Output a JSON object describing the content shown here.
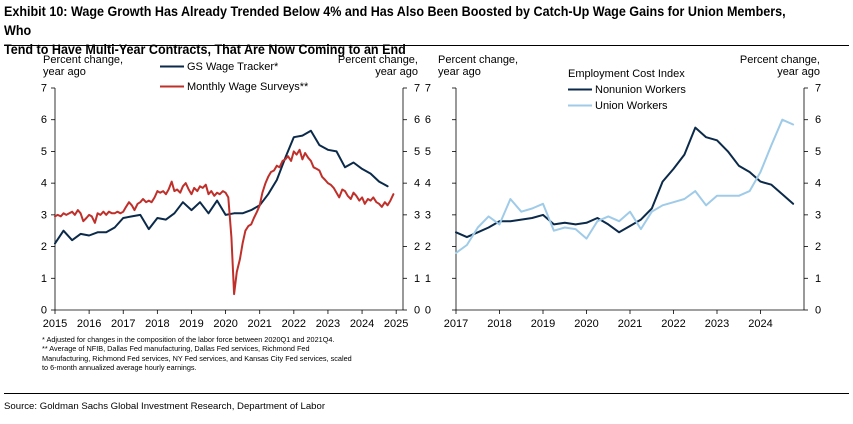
{
  "title_line1": "Exhibit 10: Wage Growth Has Already Trended Below 4% and Has Also Been Boosted by Catch-Up Wage Gains for Union Members, Who",
  "title_line2": "Tend to Have Multi-Year Contracts, That Are Now Coming to an End",
  "footnotes": [
    "* Adjusted for changes in the composition of the labor force between 2020Q1 and 2021Q4.",
    "** Average of NFIB, Dallas Fed manufacturing, Dallas Fed services, Richmond Fed",
    "Manufacturing, Richmond Fed services, NY Fed services, and Kansas City Fed services, scaled",
    "to 6-month annualized average hourly earnings."
  ],
  "source": "Source: Goldman Sachs Global Investment Research, Department of Labor",
  "colors": {
    "navy": "#0b2a4a",
    "red": "#c0302b",
    "light_blue": "#9fcbe8",
    "rule": "#000000",
    "axis": "#000000"
  },
  "chart_data": [
    {
      "type": "line",
      "yaxis_left_label": [
        "Percent change,",
        "year ago"
      ],
      "yaxis_right_label": [
        "Percent change,",
        "year ago"
      ],
      "ylim": [
        0,
        7
      ],
      "yticks": [
        0,
        1,
        2,
        3,
        4,
        5,
        6,
        7
      ],
      "xlim": [
        2015,
        2025.2
      ],
      "xticks": [
        2015,
        2016,
        2017,
        2018,
        2019,
        2020,
        2021,
        2022,
        2023,
        2024,
        2025
      ],
      "legend_position": "top",
      "series": [
        {
          "name": "GS Wage Tracker*",
          "color": "#0b2a4a",
          "x": [
            2015.0,
            2015.25,
            2015.5,
            2015.75,
            2016.0,
            2016.25,
            2016.5,
            2016.75,
            2017.0,
            2017.25,
            2017.5,
            2017.75,
            2018.0,
            2018.25,
            2018.5,
            2018.75,
            2019.0,
            2019.25,
            2019.5,
            2019.75,
            2020.0,
            2020.25,
            2020.5,
            2020.75,
            2021.0,
            2021.25,
            2021.5,
            2021.75,
            2022.0,
            2022.25,
            2022.5,
            2022.75,
            2023.0,
            2023.25,
            2023.5,
            2023.75,
            2024.0,
            2024.25,
            2024.5,
            2024.75
          ],
          "y": [
            2.1,
            2.5,
            2.2,
            2.4,
            2.35,
            2.45,
            2.45,
            2.6,
            2.9,
            2.95,
            3.0,
            2.55,
            2.9,
            2.85,
            3.05,
            3.4,
            3.15,
            3.4,
            3.05,
            3.45,
            3.0,
            3.05,
            3.05,
            3.15,
            3.3,
            3.65,
            4.1,
            4.8,
            5.45,
            5.5,
            5.65,
            5.2,
            5.05,
            5.0,
            4.5,
            4.65,
            4.45,
            4.3,
            4.05,
            3.9
          ]
        },
        {
          "name": "Monthly Wage Surveys**",
          "color": "#c0302b",
          "x": [
            2015.0,
            2015.08,
            2015.17,
            2015.25,
            2015.33,
            2015.42,
            2015.5,
            2015.58,
            2015.67,
            2015.75,
            2015.83,
            2015.92,
            2016.0,
            2016.08,
            2016.17,
            2016.25,
            2016.33,
            2016.42,
            2016.5,
            2016.58,
            2016.67,
            2016.75,
            2016.83,
            2016.92,
            2017.0,
            2017.08,
            2017.17,
            2017.25,
            2017.33,
            2017.42,
            2017.5,
            2017.58,
            2017.67,
            2017.75,
            2017.83,
            2017.92,
            2018.0,
            2018.08,
            2018.17,
            2018.25,
            2018.33,
            2018.42,
            2018.5,
            2018.58,
            2018.67,
            2018.75,
            2018.83,
            2018.92,
            2019.0,
            2019.08,
            2019.17,
            2019.25,
            2019.33,
            2019.42,
            2019.5,
            2019.58,
            2019.67,
            2019.75,
            2019.83,
            2019.92,
            2020.0,
            2020.08,
            2020.17,
            2020.25,
            2020.33,
            2020.42,
            2020.5,
            2020.58,
            2020.67,
            2020.75,
            2020.83,
            2020.92,
            2021.0,
            2021.08,
            2021.17,
            2021.25,
            2021.33,
            2021.42,
            2021.5,
            2021.58,
            2021.67,
            2021.75,
            2021.83,
            2021.92,
            2022.0,
            2022.08,
            2022.17,
            2022.25,
            2022.33,
            2022.42,
            2022.5,
            2022.58,
            2022.67,
            2022.75,
            2022.83,
            2022.92,
            2023.0,
            2023.08,
            2023.17,
            2023.25,
            2023.33,
            2023.42,
            2023.5,
            2023.58,
            2023.67,
            2023.75,
            2023.83,
            2023.92,
            2024.0,
            2024.08,
            2024.17,
            2024.25,
            2024.33,
            2024.42,
            2024.5,
            2024.58,
            2024.67,
            2024.75,
            2024.83,
            2024.92
          ],
          "y": [
            2.95,
            3.0,
            2.95,
            3.05,
            3.0,
            3.05,
            3.1,
            3.0,
            3.15,
            3.05,
            2.8,
            2.9,
            3.0,
            2.95,
            2.75,
            3.05,
            3.0,
            3.1,
            3.0,
            3.1,
            3.05,
            3.05,
            3.1,
            3.05,
            3.1,
            3.25,
            3.4,
            3.3,
            3.15,
            3.35,
            3.4,
            3.5,
            3.4,
            3.45,
            3.4,
            3.55,
            3.75,
            3.7,
            3.75,
            3.65,
            3.8,
            4.05,
            3.75,
            3.8,
            3.7,
            3.9,
            4.0,
            3.8,
            3.65,
            3.85,
            3.75,
            3.9,
            3.85,
            3.95,
            3.65,
            3.75,
            3.6,
            3.7,
            3.65,
            3.75,
            3.7,
            3.55,
            2.3,
            0.5,
            1.2,
            1.6,
            2.1,
            2.5,
            2.65,
            2.7,
            2.9,
            3.1,
            3.3,
            3.7,
            4.0,
            4.2,
            4.35,
            4.4,
            4.55,
            4.5,
            4.7,
            4.75,
            4.85,
            4.7,
            5.0,
            4.9,
            5.05,
            4.75,
            4.95,
            4.8,
            4.7,
            4.5,
            4.45,
            4.4,
            4.2,
            4.1,
            4.0,
            3.95,
            3.85,
            3.7,
            3.55,
            3.8,
            3.75,
            3.6,
            3.5,
            3.7,
            3.6,
            3.45,
            3.55,
            3.35,
            3.5,
            3.45,
            3.55,
            3.4,
            3.35,
            3.25,
            3.4,
            3.3,
            3.45,
            3.65
          ]
        }
      ]
    },
    {
      "type": "line",
      "yaxis_left_label": [
        "Percent change,",
        "year ago"
      ],
      "yaxis_right_label": [
        "Percent change,",
        "year ago"
      ],
      "legend_title": "Employment Cost Index",
      "legend_position": "top",
      "ylim": [
        0,
        7
      ],
      "yticks": [
        0,
        1,
        2,
        3,
        4,
        5,
        6,
        7
      ],
      "xlim": [
        2017,
        2025.0
      ],
      "xticks": [
        2017,
        2018,
        2019,
        2020,
        2021,
        2022,
        2023,
        2024
      ],
      "series": [
        {
          "name": "Nonunion Workers",
          "color": "#0b2a4a",
          "x": [
            2017.0,
            2017.25,
            2017.5,
            2017.75,
            2018.0,
            2018.25,
            2018.5,
            2018.75,
            2019.0,
            2019.25,
            2019.5,
            2019.75,
            2020.0,
            2020.25,
            2020.5,
            2020.75,
            2021.0,
            2021.25,
            2021.5,
            2021.75,
            2022.0,
            2022.25,
            2022.5,
            2022.75,
            2023.0,
            2023.25,
            2023.5,
            2023.75,
            2024.0,
            2024.25,
            2024.5,
            2024.75
          ],
          "y": [
            2.45,
            2.3,
            2.45,
            2.6,
            2.8,
            2.8,
            2.85,
            2.9,
            3.0,
            2.7,
            2.75,
            2.7,
            2.75,
            2.9,
            2.7,
            2.45,
            2.65,
            2.85,
            3.2,
            4.05,
            4.45,
            4.9,
            5.75,
            5.45,
            5.35,
            5.0,
            4.55,
            4.35,
            4.05,
            3.95,
            3.65,
            3.35
          ]
        },
        {
          "name": "Union Workers",
          "color": "#9fcbe8",
          "x": [
            2017.0,
            2017.25,
            2017.5,
            2017.75,
            2018.0,
            2018.25,
            2018.5,
            2018.75,
            2019.0,
            2019.25,
            2019.5,
            2019.75,
            2020.0,
            2020.25,
            2020.5,
            2020.75,
            2021.0,
            2021.25,
            2021.5,
            2021.75,
            2022.0,
            2022.25,
            2022.5,
            2022.75,
            2023.0,
            2023.25,
            2023.5,
            2023.75,
            2024.0,
            2024.25,
            2024.5,
            2024.75
          ],
          "y": [
            1.8,
            2.05,
            2.6,
            2.95,
            2.7,
            3.5,
            3.1,
            3.2,
            3.35,
            2.5,
            2.6,
            2.55,
            2.25,
            2.8,
            2.95,
            2.8,
            3.1,
            2.55,
            3.1,
            3.3,
            3.4,
            3.5,
            3.75,
            3.3,
            3.6,
            3.6,
            3.6,
            3.75,
            4.35,
            5.2,
            6.0,
            5.85
          ]
        }
      ]
    }
  ]
}
